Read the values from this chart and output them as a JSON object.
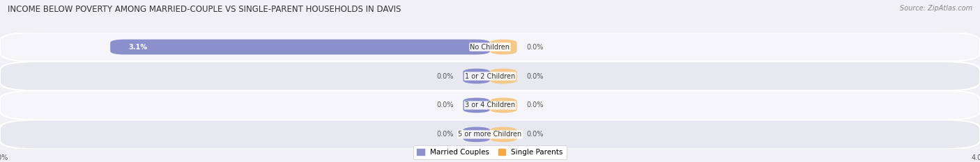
{
  "title": "INCOME BELOW POVERTY AMONG MARRIED-COUPLE VS SINGLE-PARENT HOUSEHOLDS IN DAVIS",
  "source": "Source: ZipAtlas.com",
  "categories": [
    "No Children",
    "1 or 2 Children",
    "3 or 4 Children",
    "5 or more Children"
  ],
  "married_values": [
    3.1,
    0.0,
    0.0,
    0.0
  ],
  "single_values": [
    0.0,
    0.0,
    0.0,
    0.0
  ],
  "xlim_left": -4.0,
  "xlim_right": 4.0,
  "married_color": "#8b8fcc",
  "single_color": "#f5c98a",
  "married_color_legend": "#9090cc",
  "single_color_legend": "#f5a84a",
  "bar_height": 0.52,
  "min_bar_width": 0.22,
  "background_color": "#f0f0f5",
  "row_bg_even": "#f5f5fa",
  "row_bg_odd": "#e8e8f0",
  "title_fontsize": 8.5,
  "label_fontsize": 7.0,
  "category_fontsize": 7.0,
  "source_fontsize": 7.0,
  "axis_label_fontsize": 7.0,
  "legend_fontsize": 7.5
}
